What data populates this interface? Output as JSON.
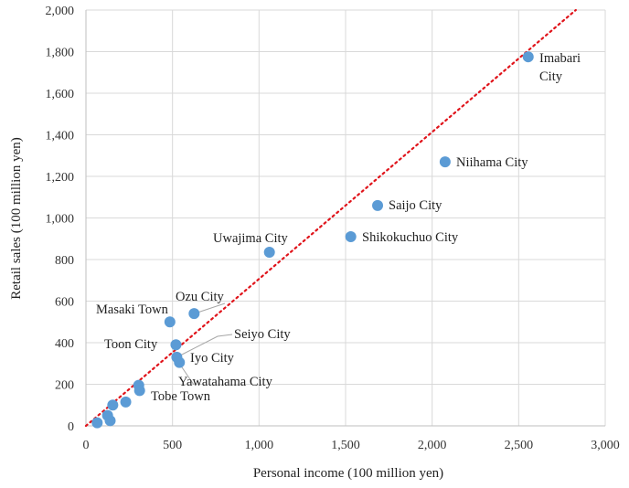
{
  "chart_data": {
    "type": "scatter",
    "xlabel": "Personal income (100 million yen)",
    "ylabel": "Retail sales (100 million yen)",
    "xlim": [
      0,
      3000
    ],
    "ylim": [
      0,
      2000
    ],
    "x_ticks": [
      "0",
      "500",
      "1,000",
      "1,500",
      "2,000",
      "2,500",
      "3,000"
    ],
    "y_ticks": [
      "0",
      "200",
      "400",
      "600",
      "800",
      "1,000",
      "1,200",
      "1,400",
      "1,600",
      "1,800",
      "2,000"
    ],
    "grid": true,
    "point_color": "#5b9bd5",
    "trendline_color": "#e0141b",
    "trendline": {
      "style": "dotted",
      "x": [
        0,
        2830
      ],
      "y": [
        0,
        2000
      ]
    },
    "points": [
      {
        "x": 2555,
        "y": 1775
      },
      {
        "x": 2075,
        "y": 1270
      },
      {
        "x": 1685,
        "y": 1060
      },
      {
        "x": 1530,
        "y": 910
      },
      {
        "x": 1060,
        "y": 835
      },
      {
        "x": 625,
        "y": 540
      },
      {
        "x": 485,
        "y": 500
      },
      {
        "x": 520,
        "y": 390
      },
      {
        "x": 525,
        "y": 330
      },
      {
        "x": 540,
        "y": 305
      },
      {
        "x": 305,
        "y": 195
      },
      {
        "x": 310,
        "y": 170
      },
      {
        "x": 155,
        "y": 100
      },
      {
        "x": 230,
        "y": 115
      },
      {
        "x": 125,
        "y": 50
      },
      {
        "x": 140,
        "y": 25
      },
      {
        "x": 65,
        "y": 15
      }
    ],
    "labels": [
      {
        "text": "Imabari"
      },
      {
        "text": "City"
      },
      {
        "text": "Niihama City"
      },
      {
        "text": "Saijo City"
      },
      {
        "text": "Shikokuchuo City"
      },
      {
        "text": "Uwajima City"
      },
      {
        "text": "Ozu City"
      },
      {
        "text": "Masaki Town"
      },
      {
        "text": "Toon City"
      },
      {
        "text": "Seiyo City"
      },
      {
        "text": "Iyo City"
      },
      {
        "text": "Yawatahama City"
      },
      {
        "text": "Tobe Town"
      }
    ]
  }
}
